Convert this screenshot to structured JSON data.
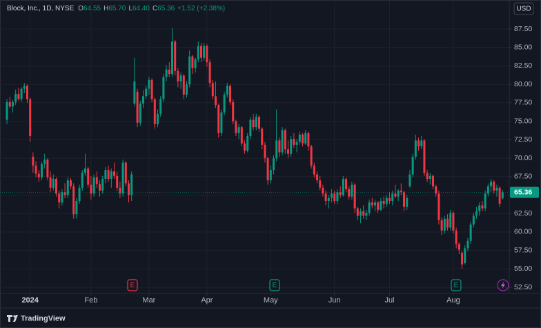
{
  "chart_data": {
    "type": "candlestick",
    "header": {
      "symbol": "Block, Inc., 1D, NYSE",
      "items": [
        {
          "key": "O",
          "value": "64.55"
        },
        {
          "key": "H",
          "value": "65.70"
        },
        {
          "key": "L",
          "value": "64.40"
        },
        {
          "key": "C",
          "value": "65.36"
        }
      ],
      "change": "+1.52 (+2.38%)"
    },
    "currency": "USD",
    "brand": "TradingView",
    "events": [
      "E",
      "E",
      "E"
    ],
    "up_color": "#089981",
    "down_color": "#f23645",
    "grid": true,
    "ylim": [
      51.67,
      91.43
    ],
    "yticks": [
      {
        "value": 52.5,
        "label": "52.50"
      },
      {
        "value": 55,
        "label": "55.00"
      },
      {
        "value": 57.5,
        "label": "57.50"
      },
      {
        "value": 60,
        "label": "60.00"
      },
      {
        "value": 62.5,
        "label": "62.50"
      },
      {
        "value": 65,
        "label": "65.00"
      },
      {
        "value": 67.5,
        "label": "67.50"
      },
      {
        "value": 70,
        "label": "70.00"
      },
      {
        "value": 72.5,
        "label": "72.50"
      },
      {
        "value": 75,
        "label": "75.00"
      },
      {
        "value": 77.5,
        "label": "77.50"
      },
      {
        "value": 80,
        "label": "80.00"
      },
      {
        "value": 82.5,
        "label": "82.50"
      },
      {
        "value": 85,
        "label": "85.00"
      },
      {
        "value": 87.5,
        "label": "87.50"
      }
    ],
    "xlim": [
      -2.4,
      173.3
    ],
    "xticks": [
      {
        "value": 8,
        "label": "2024"
      },
      {
        "value": 29,
        "label": "Feb"
      },
      {
        "value": 49,
        "label": "Mar"
      },
      {
        "value": 69,
        "label": "Apr"
      },
      {
        "value": 91,
        "label": "May"
      },
      {
        "value": 113,
        "label": "Jun"
      },
      {
        "value": 132,
        "label": "Jul"
      },
      {
        "value": 154,
        "label": "Aug"
      }
    ],
    "candles": [
      [
        75.2,
        78.0,
        74.6,
        77.6
      ],
      [
        77.6,
        78.3,
        76.8,
        77.0
      ],
      [
        77.0,
        77.9,
        76.2,
        77.6
      ],
      [
        77.6,
        79.3,
        77.2,
        78.7
      ],
      [
        78.7,
        79.5,
        77.8,
        78.0
      ],
      [
        78.0,
        79.6,
        77.6,
        79.4
      ],
      [
        79.4,
        80.2,
        78.8,
        79.8
      ],
      [
        79.8,
        80.0,
        77.5,
        78.0
      ],
      [
        78.0,
        78.2,
        72.2,
        73.0
      ],
      [
        70.2,
        70.8,
        68.0,
        69.0
      ],
      [
        69.0,
        69.6,
        67.4,
        67.9
      ],
      [
        67.9,
        68.4,
        66.8,
        67.4
      ],
      [
        67.4,
        69.5,
        67.0,
        69.2
      ],
      [
        69.2,
        70.6,
        68.6,
        69.8
      ],
      [
        69.8,
        70.0,
        67.0,
        67.4
      ],
      [
        67.4,
        68.2,
        65.4,
        66.0
      ],
      [
        66.0,
        67.8,
        65.6,
        67.2
      ],
      [
        67.2,
        67.4,
        64.8,
        65.2
      ],
      [
        65.2,
        65.6,
        63.2,
        64.0
      ],
      [
        64.0,
        65.8,
        63.6,
        65.4
      ],
      [
        65.4,
        66.6,
        64.6,
        65.0
      ],
      [
        65.0,
        67.4,
        64.6,
        67.0
      ],
      [
        67.0,
        67.3,
        65.8,
        66.2
      ],
      [
        66.2,
        66.6,
        61.8,
        62.4
      ],
      [
        62.4,
        64.6,
        61.8,
        64.2
      ],
      [
        64.2,
        66.4,
        63.8,
        66.0
      ],
      [
        66.0,
        68.4,
        65.6,
        68.0
      ],
      [
        68.0,
        70.6,
        67.6,
        68.6
      ],
      [
        68.6,
        68.8,
        66.0,
        66.4
      ],
      [
        66.4,
        67.6,
        64.4,
        65.2
      ],
      [
        65.2,
        67.8,
        64.8,
        67.4
      ],
      [
        67.4,
        68.2,
        66.0,
        66.5
      ],
      [
        66.5,
        67.0,
        64.8,
        65.6
      ],
      [
        65.6,
        67.6,
        65.2,
        67.2
      ],
      [
        67.2,
        68.8,
        66.6,
        68.4
      ],
      [
        68.4,
        69.0,
        66.8,
        67.2
      ],
      [
        67.2,
        68.6,
        66.0,
        68.2
      ],
      [
        68.2,
        69.4,
        67.2,
        67.6
      ],
      [
        67.6,
        68.2,
        65.6,
        66.0
      ],
      [
        66.0,
        66.8,
        64.6,
        65.2
      ],
      [
        65.2,
        69.8,
        64.8,
        69.4
      ],
      [
        69.4,
        69.6,
        66.2,
        66.6
      ],
      [
        66.6,
        67.0,
        64.0,
        65.0
      ],
      [
        65.0,
        68.2,
        64.2,
        67.8
      ],
      [
        77.4,
        83.6,
        77.0,
        80.4
      ],
      [
        79.0,
        79.4,
        74.2,
        74.8
      ],
      [
        74.8,
        77.8,
        74.4,
        77.4
      ],
      [
        77.4,
        79.2,
        76.8,
        78.4
      ],
      [
        78.4,
        79.8,
        78.0,
        79.4
      ],
      [
        79.4,
        81.0,
        78.6,
        80.6
      ],
      [
        80.6,
        80.8,
        77.6,
        78.0
      ],
      [
        78.0,
        78.2,
        74.0,
        74.6
      ],
      [
        74.6,
        76.6,
        74.2,
        76.0
      ],
      [
        76.0,
        78.4,
        75.6,
        78.0
      ],
      [
        78.0,
        81.4,
        77.6,
        81.0
      ],
      [
        81.0,
        82.6,
        80.4,
        82.0
      ],
      [
        82.0,
        83.0,
        81.0,
        81.4
      ],
      [
        81.4,
        87.6,
        81.0,
        85.8
      ],
      [
        85.8,
        86.0,
        81.2,
        81.8
      ],
      [
        81.8,
        82.2,
        79.6,
        80.4
      ],
      [
        80.4,
        81.6,
        79.4,
        81.2
      ],
      [
        81.2,
        81.4,
        78.0,
        78.6
      ],
      [
        78.6,
        80.4,
        78.2,
        80.0
      ],
      [
        80.0,
        84.6,
        79.6,
        83.8
      ],
      [
        83.8,
        84.0,
        81.4,
        82.2
      ],
      [
        82.2,
        83.6,
        81.6,
        83.4
      ],
      [
        83.4,
        85.8,
        83.0,
        85.2
      ],
      [
        85.2,
        85.6,
        83.0,
        83.6
      ],
      [
        83.6,
        85.6,
        83.2,
        85.2
      ],
      [
        85.2,
        85.4,
        82.4,
        83.0
      ],
      [
        83.0,
        83.4,
        79.6,
        80.2
      ],
      [
        80.2,
        80.6,
        78.0,
        78.4
      ],
      [
        78.4,
        80.4,
        76.8,
        77.2
      ],
      [
        77.2,
        77.4,
        72.8,
        73.4
      ],
      [
        73.4,
        76.6,
        73.0,
        76.2
      ],
      [
        76.2,
        79.0,
        75.8,
        78.6
      ],
      [
        78.6,
        80.2,
        78.2,
        79.8
      ],
      [
        79.8,
        80.0,
        77.2,
        77.6
      ],
      [
        77.6,
        78.0,
        74.6,
        75.0
      ],
      [
        75.0,
        75.2,
        73.0,
        73.4
      ],
      [
        73.4,
        74.6,
        72.6,
        74.2
      ],
      [
        74.2,
        74.4,
        71.6,
        72.0
      ],
      [
        72.0,
        72.4,
        70.6,
        71.0
      ],
      [
        71.0,
        73.4,
        70.8,
        73.0
      ],
      [
        73.0,
        75.6,
        72.6,
        75.2
      ],
      [
        75.2,
        76.0,
        73.8,
        74.2
      ],
      [
        74.2,
        76.0,
        73.8,
        75.6
      ],
      [
        75.6,
        75.8,
        73.6,
        74.0
      ],
      [
        74.0,
        74.2,
        71.2,
        71.8
      ],
      [
        71.8,
        72.2,
        69.4,
        70.0
      ],
      [
        70.0,
        70.2,
        66.4,
        67.0
      ],
      [
        67.0,
        69.0,
        66.6,
        68.4
      ],
      [
        68.4,
        70.4,
        67.8,
        70.0
      ],
      [
        70.0,
        76.6,
        69.6,
        72.4
      ],
      [
        72.4,
        72.8,
        70.2,
        70.8
      ],
      [
        70.8,
        74.2,
        70.4,
        73.8
      ],
      [
        73.8,
        74.0,
        70.6,
        71.2
      ],
      [
        71.2,
        72.4,
        70.0,
        70.6
      ],
      [
        70.6,
        73.0,
        70.2,
        72.6
      ],
      [
        72.6,
        73.4,
        71.4,
        71.8
      ],
      [
        71.8,
        72.6,
        70.8,
        72.2
      ],
      [
        72.2,
        73.6,
        71.8,
        73.2
      ],
      [
        73.2,
        73.4,
        71.6,
        72.0
      ],
      [
        72.0,
        73.8,
        71.8,
        73.4
      ],
      [
        73.4,
        73.6,
        71.0,
        71.6
      ],
      [
        71.6,
        71.8,
        68.6,
        69.0
      ],
      [
        69.0,
        69.4,
        67.4,
        67.8
      ],
      [
        67.8,
        68.2,
        66.6,
        67.0
      ],
      [
        67.0,
        67.6,
        65.6,
        66.0
      ],
      [
        66.0,
        66.4,
        64.8,
        65.2
      ],
      [
        65.2,
        65.6,
        63.6,
        64.2
      ],
      [
        64.2,
        65.0,
        63.2,
        64.6
      ],
      [
        64.6,
        65.8,
        64.0,
        65.2
      ],
      [
        65.2,
        65.6,
        63.8,
        64.2
      ],
      [
        64.2,
        65.8,
        63.8,
        65.4
      ],
      [
        65.4,
        66.2,
        64.6,
        65.0
      ],
      [
        65.0,
        67.6,
        64.8,
        67.2
      ],
      [
        67.2,
        67.4,
        65.4,
        65.8
      ],
      [
        65.8,
        66.2,
        64.4,
        64.8
      ],
      [
        64.8,
        66.8,
        64.4,
        66.4
      ],
      [
        66.4,
        66.6,
        62.6,
        63.2
      ],
      [
        63.2,
        63.4,
        61.6,
        62.2
      ],
      [
        62.2,
        63.2,
        61.2,
        62.8
      ],
      [
        62.8,
        63.6,
        61.8,
        62.2
      ],
      [
        62.2,
        63.0,
        61.6,
        62.6
      ],
      [
        62.6,
        64.4,
        62.2,
        64.0
      ],
      [
        64.0,
        64.6,
        63.2,
        63.6
      ],
      [
        63.6,
        64.4,
        62.8,
        64.0
      ],
      [
        64.0,
        64.2,
        62.6,
        63.0
      ],
      [
        63.0,
        64.6,
        62.8,
        64.2
      ],
      [
        64.2,
        64.8,
        63.2,
        63.8
      ],
      [
        63.8,
        65.0,
        63.4,
        64.6
      ],
      [
        64.6,
        65.4,
        63.8,
        64.2
      ],
      [
        64.2,
        65.6,
        63.6,
        65.2
      ],
      [
        65.2,
        66.4,
        64.6,
        64.8
      ],
      [
        64.8,
        65.8,
        64.2,
        65.6
      ],
      [
        65.6,
        66.6,
        65.0,
        65.4
      ],
      [
        65.4,
        65.6,
        62.8,
        63.4
      ],
      [
        63.4,
        65.0,
        63.0,
        64.6
      ],
      [
        66.2,
        68.4,
        66.0,
        67.8
      ],
      [
        67.8,
        70.6,
        67.4,
        70.2
      ],
      [
        70.2,
        73.2,
        69.8,
        72.4
      ],
      [
        72.4,
        72.8,
        71.0,
        71.6
      ],
      [
        71.6,
        73.0,
        71.2,
        72.4
      ],
      [
        72.4,
        72.6,
        67.6,
        68.0
      ],
      [
        68.0,
        68.4,
        66.8,
        67.2
      ],
      [
        67.2,
        68.0,
        66.4,
        67.6
      ],
      [
        67.6,
        67.8,
        65.8,
        66.2
      ],
      [
        66.2,
        66.4,
        64.8,
        65.2
      ],
      [
        65.2,
        65.6,
        61.0,
        61.6
      ],
      [
        61.6,
        62.0,
        59.6,
        60.2
      ],
      [
        60.2,
        62.2,
        59.8,
        61.8
      ],
      [
        61.8,
        62.4,
        60.2,
        60.6
      ],
      [
        60.6,
        63.0,
        60.2,
        62.6
      ],
      [
        62.6,
        62.8,
        59.8,
        60.2
      ],
      [
        60.2,
        60.6,
        57.8,
        58.4
      ],
      [
        58.4,
        58.6,
        57.0,
        57.6
      ],
      [
        57.2,
        57.4,
        55.0,
        55.6
      ],
      [
        55.8,
        58.2,
        55.6,
        57.8
      ],
      [
        57.8,
        59.2,
        57.4,
        58.8
      ],
      [
        58.8,
        61.4,
        58.4,
        61.0
      ],
      [
        61.0,
        62.6,
        60.6,
        62.2
      ],
      [
        62.2,
        63.4,
        61.8,
        62.8
      ],
      [
        62.8,
        64.0,
        62.2,
        63.6
      ],
      [
        63.6,
        64.2,
        62.8,
        63.2
      ],
      [
        63.2,
        65.6,
        62.8,
        65.2
      ],
      [
        65.2,
        66.6,
        64.8,
        66.2
      ],
      [
        66.2,
        67.2,
        65.4,
        66.8
      ],
      [
        66.8,
        67.0,
        65.2,
        65.6
      ],
      [
        65.6,
        66.4,
        64.8,
        66.0
      ],
      [
        66.0,
        66.2,
        63.4,
        63.84
      ],
      [
        64.55,
        65.7,
        64.4,
        65.36
      ]
    ]
  }
}
